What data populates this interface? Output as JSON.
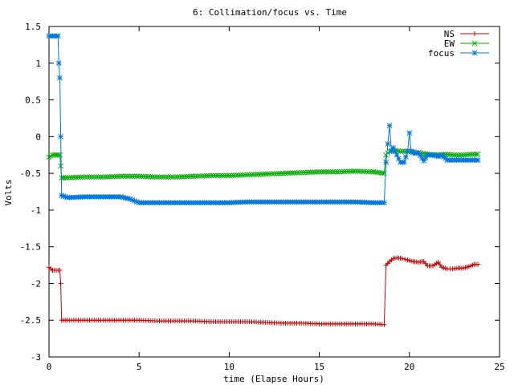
{
  "chart_data": {
    "type": "line",
    "title": "6: Collimation/focus vs. Time",
    "xlabel": "time (Elapse Hours)",
    "ylabel": "Volts",
    "xlim": [
      0,
      25
    ],
    "ylim": [
      -3,
      1.5
    ],
    "x_ticks": [
      0,
      5,
      10,
      15,
      20,
      25
    ],
    "y_ticks": [
      -3,
      -2.5,
      -2,
      -1.5,
      -1,
      -0.5,
      0,
      0.5,
      1,
      1.5
    ],
    "x_tick_labels": [
      "0",
      "5",
      "10",
      "15",
      "20",
      "25"
    ],
    "y_tick_labels": [
      "-3",
      "-2.5",
      "-2",
      "-1.5",
      "-1",
      "-0.5",
      "0",
      "0.5",
      "1",
      "1.5"
    ],
    "grid": false,
    "legend_position": "top-right",
    "series": [
      {
        "name": "NS",
        "color": "#cc0000",
        "marker": "plus",
        "x": [
          0,
          0.2,
          0.4,
          0.6,
          0.65,
          0.7,
          1,
          2,
          3,
          4,
          5,
          6,
          7,
          8,
          9,
          10,
          11,
          12,
          13,
          14,
          15,
          16,
          17,
          18,
          18.6,
          18.7,
          18.9,
          19.1,
          19.3,
          19.6,
          19.9,
          20.2,
          20.5,
          20.8,
          21.0,
          21.3,
          21.6,
          21.8,
          22.1,
          22.4,
          22.7,
          23.0,
          23.3,
          23.6,
          23.8
        ],
        "y": [
          -1.78,
          -1.82,
          -1.82,
          -1.82,
          -2.0,
          -2.5,
          -2.5,
          -2.5,
          -2.5,
          -2.5,
          -2.5,
          -2.51,
          -2.51,
          -2.51,
          -2.52,
          -2.52,
          -2.52,
          -2.53,
          -2.54,
          -2.54,
          -2.55,
          -2.55,
          -2.55,
          -2.55,
          -2.56,
          -1.75,
          -1.7,
          -1.66,
          -1.65,
          -1.66,
          -1.68,
          -1.7,
          -1.71,
          -1.7,
          -1.76,
          -1.76,
          -1.71,
          -1.78,
          -1.8,
          -1.8,
          -1.79,
          -1.79,
          -1.77,
          -1.74,
          -1.74
        ]
      },
      {
        "name": "EW",
        "color": "#00aa00",
        "marker": "cross",
        "x": [
          0,
          0.2,
          0.4,
          0.6,
          0.65,
          0.7,
          1,
          2,
          3,
          4,
          5,
          6,
          7,
          8,
          9,
          10,
          11,
          12,
          13,
          14,
          15,
          16,
          17,
          18,
          18.6,
          18.7,
          18.9,
          19.1,
          19.5,
          20,
          20.5,
          21,
          21.5,
          22,
          22.5,
          23,
          23.5,
          23.8
        ],
        "y": [
          -0.28,
          -0.25,
          -0.25,
          -0.25,
          -0.4,
          -0.56,
          -0.56,
          -0.55,
          -0.55,
          -0.54,
          -0.54,
          -0.55,
          -0.55,
          -0.54,
          -0.53,
          -0.53,
          -0.52,
          -0.51,
          -0.5,
          -0.49,
          -0.48,
          -0.48,
          -0.47,
          -0.48,
          -0.5,
          -0.25,
          -0.2,
          -0.18,
          -0.2,
          -0.2,
          -0.22,
          -0.24,
          -0.25,
          -0.24,
          -0.25,
          -0.25,
          -0.24,
          -0.24
        ]
      },
      {
        "name": "focus",
        "color": "#0077dd",
        "marker": "star",
        "x": [
          0,
          0.2,
          0.4,
          0.5,
          0.55,
          0.6,
          0.65,
          0.7,
          1.0,
          2,
          3,
          4,
          4.5,
          5,
          6,
          7,
          8,
          9,
          10,
          11,
          12,
          13,
          14,
          15,
          16,
          17,
          18,
          18.6,
          18.7,
          18.8,
          18.9,
          19.0,
          19.1,
          19.3,
          19.5,
          19.7,
          19.9,
          20.0,
          20.1,
          20.3,
          20.5,
          20.8,
          21.0,
          21.3,
          21.6,
          21.8,
          22.1,
          22.5,
          23.0,
          23.5,
          23.8
        ],
        "y": [
          1.37,
          1.37,
          1.37,
          1.37,
          1.0,
          0.8,
          0.0,
          -0.8,
          -0.83,
          -0.82,
          -0.82,
          -0.82,
          -0.85,
          -0.9,
          -0.9,
          -0.9,
          -0.9,
          -0.9,
          -0.9,
          -0.89,
          -0.89,
          -0.89,
          -0.89,
          -0.89,
          -0.89,
          -0.89,
          -0.9,
          -0.9,
          -0.35,
          -0.1,
          0.15,
          -0.2,
          -0.15,
          -0.25,
          -0.35,
          -0.35,
          -0.2,
          0.05,
          -0.2,
          -0.23,
          -0.22,
          -0.33,
          -0.25,
          -0.25,
          -0.27,
          -0.25,
          -0.32,
          -0.32,
          -0.32,
          -0.32,
          -0.32
        ]
      }
    ]
  }
}
